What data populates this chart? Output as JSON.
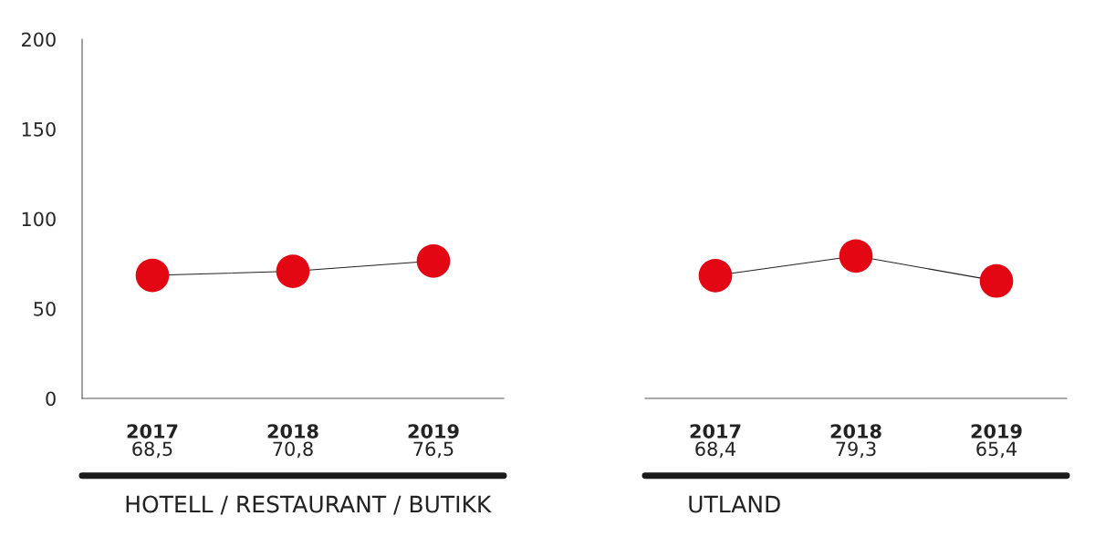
{
  "chart_data": [
    {
      "type": "line",
      "categories": [
        "2017",
        "2018",
        "2019"
      ],
      "series": [
        {
          "color": "#e30613",
          "values": [
            68.5,
            70.8,
            76.5
          ],
          "value_labels": [
            "68,5",
            "70,8",
            "76,5"
          ]
        }
      ],
      "xlabel": "HOTELL / RESTAURANT / BUTIKK",
      "ylim": [
        0,
        200
      ],
      "yticks": [
        0,
        50,
        100,
        150,
        200
      ],
      "marker": "circle",
      "line_style": "solid",
      "grid": false,
      "legend": false
    },
    {
      "type": "line",
      "categories": [
        "2017",
        "2018",
        "2019"
      ],
      "series": [
        {
          "color": "#e30613",
          "values": [
            68.4,
            79.3,
            65.4
          ],
          "value_labels": [
            "68,4",
            "79,3",
            "65,4"
          ]
        }
      ],
      "xlabel": "UTLAND",
      "ylim": [
        0,
        200
      ],
      "yticks": [
        0,
        50,
        100,
        150,
        200
      ],
      "tick_labels": "x",
      "marker": "circle",
      "line_style": "solid",
      "grid": false,
      "legend": false
    }
  ]
}
